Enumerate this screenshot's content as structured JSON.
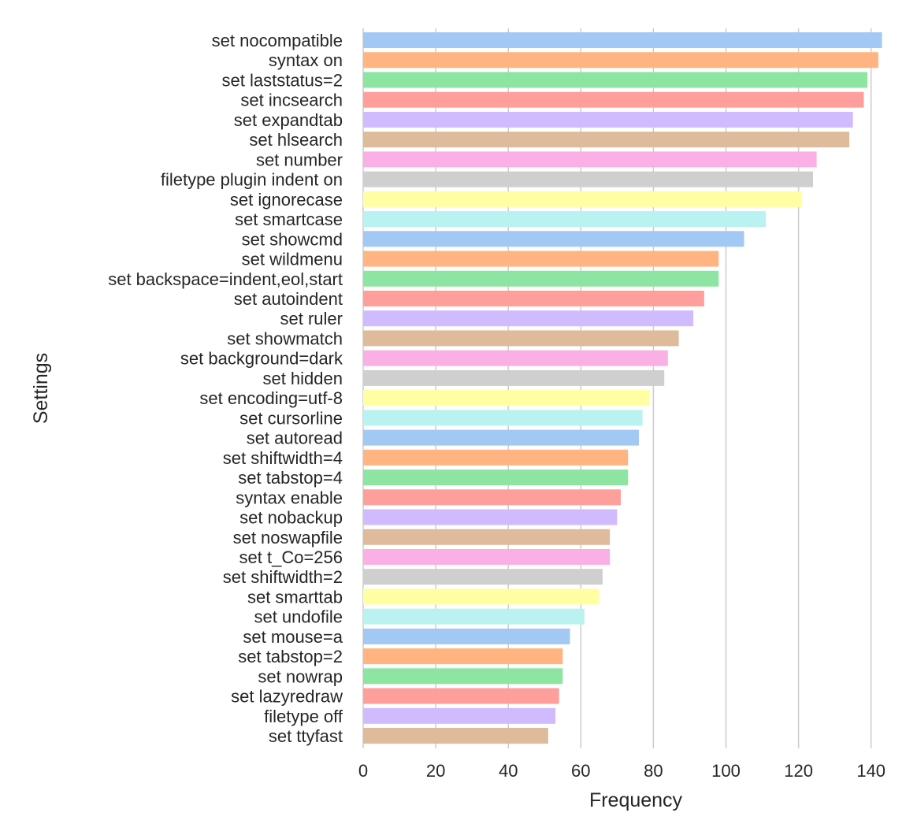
{
  "chart_data": {
    "type": "bar",
    "orientation": "horizontal",
    "title": "",
    "xlabel": "Frequency",
    "ylabel": "Settings",
    "xlim": [
      0,
      144
    ],
    "xticks": [
      0,
      20,
      40,
      60,
      80,
      100,
      120,
      140
    ],
    "grid": "vertical",
    "categories": [
      "set nocompatible",
      "syntax on",
      "set laststatus=2",
      "set incsearch",
      "set expandtab",
      "set hlsearch",
      "set number",
      "filetype plugin indent on",
      "set ignorecase",
      "set smartcase",
      "set showcmd",
      "set wildmenu",
      "set backspace=indent,eol,start",
      "set autoindent",
      "set ruler",
      "set showmatch",
      "set background=dark",
      "set hidden",
      "set encoding=utf-8",
      "set cursorline",
      "set autoread",
      "set shiftwidth=4",
      "set tabstop=4",
      "syntax enable",
      "set nobackup",
      "set noswapfile",
      "set t_Co=256",
      "set shiftwidth=2",
      "set smarttab",
      "set undofile",
      "set mouse=a",
      "set tabstop=2",
      "set nowrap",
      "set lazyredraw",
      "filetype off",
      "set ttyfast"
    ],
    "values": [
      143,
      142,
      139,
      138,
      135,
      134,
      125,
      124,
      121,
      111,
      105,
      98,
      98,
      94,
      91,
      87,
      84,
      83,
      79,
      77,
      76,
      73,
      73,
      71,
      70,
      68,
      68,
      66,
      65,
      61,
      57,
      55,
      55,
      54,
      53,
      51
    ],
    "palette": [
      "#a1c9f4",
      "#ffb482",
      "#8de5a1",
      "#ff9f9b",
      "#d0bbff",
      "#debb9b",
      "#fab0e4",
      "#cfcfcf",
      "#fffea3",
      "#b9f2f0"
    ]
  }
}
